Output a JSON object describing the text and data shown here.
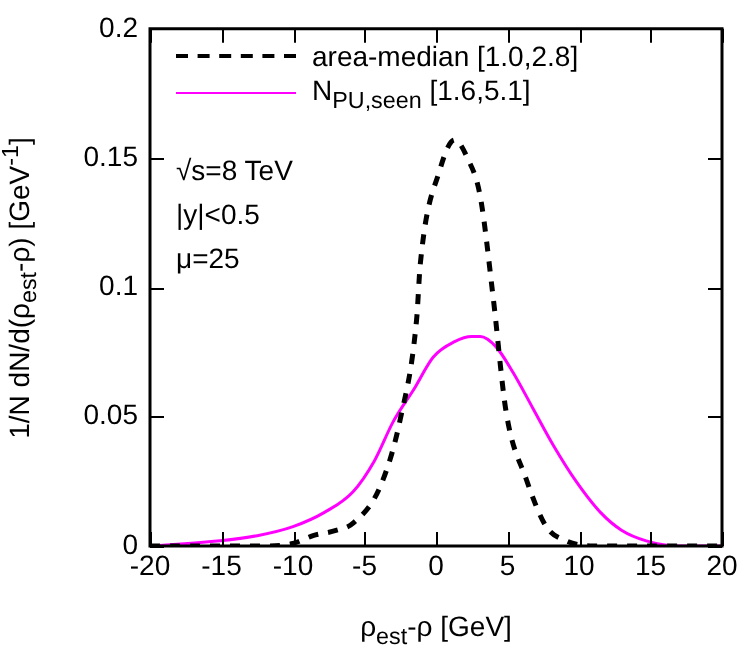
{
  "chart_data": {
    "type": "line",
    "xlabel": "ρ$_{est}$-ρ [GeV]",
    "ylabel": "1/N dN/d(ρ$_{est}$-ρ) [GeV$^{-1}$]",
    "xlim": [
      -20,
      20
    ],
    "xticks": [
      -20,
      -15,
      -10,
      -5,
      0,
      5,
      10,
      15,
      20
    ],
    "ylim": [
      0,
      0.2
    ],
    "yticks": [
      0,
      0.05,
      0.1,
      0.15,
      0.2
    ],
    "grid": false,
    "legend": "top left",
    "marker": "none",
    "annotations": [
      "√s=8 TeV",
      "|y|<0.5",
      "μ=25"
    ],
    "series": [
      {
        "name": "area-median [1.0,2.8]",
        "color": "#000000",
        "line_style": "dashed",
        "x": [
          -20,
          -15,
          -12,
          -10,
          -8.6,
          -7,
          -5.8,
          -3.9,
          -2.5,
          -1.35,
          -1.1,
          0.3,
          1.3,
          2.2,
          3.1,
          4.0,
          4.9,
          6.3,
          7.7,
          9.1,
          11,
          15,
          20
        ],
        "values": [
          0,
          0,
          0,
          0.001,
          0.004,
          0.006,
          0.0088,
          0.023,
          0.049,
          0.088,
          0.109,
          0.146,
          0.157,
          0.15,
          0.135,
          0.096,
          0.052,
          0.026,
          0.0076,
          0.002,
          0,
          0,
          0
        ]
      },
      {
        "name": "N$_{PU,seen}$ [1.6,5.1]",
        "color": "#ff00ff",
        "line_style": "solid",
        "x": [
          -20,
          -15.1,
          -12.5,
          -10,
          -7.8,
          -5.8,
          -4.3,
          -3,
          -1.5,
          -0.2,
          1.3,
          2.5,
          3.1,
          4.2,
          5.4,
          6.8,
          8.2,
          9.8,
          11.5,
          13,
          14.7,
          17,
          20
        ],
        "values": [
          0,
          0.002,
          0.004,
          0.0075,
          0.013,
          0.021,
          0.033,
          0.048,
          0.061,
          0.073,
          0.079,
          0.081,
          0.081,
          0.077,
          0.067,
          0.053,
          0.039,
          0.025,
          0.013,
          0.006,
          0.002,
          0,
          0
        ]
      }
    ]
  }
}
